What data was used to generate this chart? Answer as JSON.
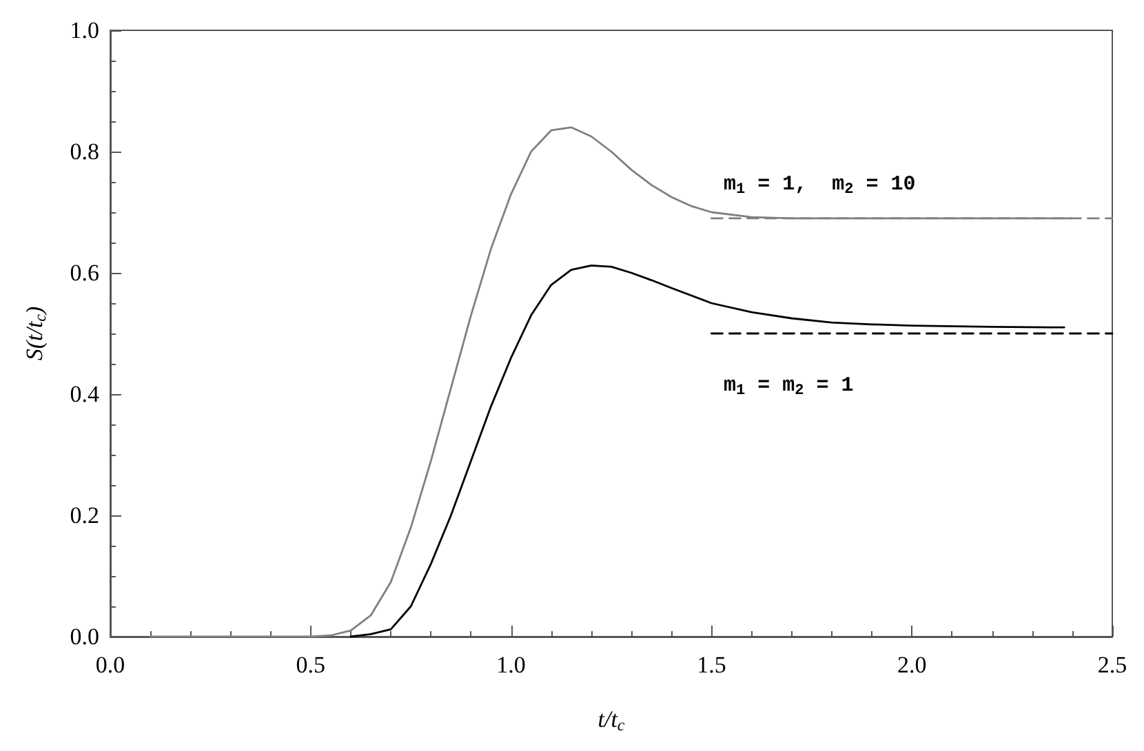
{
  "chart_data": {
    "type": "line",
    "xlabel": "t/t$_{c}$",
    "ylabel": "S(t/t$_{c}$)",
    "xlim": [
      0,
      2.5
    ],
    "xticks": [
      {
        "value": 0,
        "label": "0.0"
      },
      0.5,
      {
        "value": 1,
        "label": "1.0"
      },
      1.5,
      {
        "value": 2,
        "label": "2.0"
      },
      2.5
    ],
    "ylim": [
      0,
      1
    ],
    "yticks": [
      {
        "value": 0,
        "label": "0.0"
      },
      0.2,
      0.4,
      0.6,
      0.8,
      {
        "value": 1,
        "label": "1.0"
      }
    ],
    "grid": false,
    "marker": "none",
    "series": [
      {
        "color": "#808080",
        "line_style": "solid",
        "x": [
          0.1,
          0.3,
          0.5,
          0.55,
          0.6,
          0.65,
          0.7,
          0.75,
          0.8,
          0.85,
          0.9,
          0.95,
          1.0,
          1.05,
          1.1,
          1.15,
          1.2,
          1.25,
          1.3,
          1.35,
          1.4,
          1.45,
          1.5,
          1.6,
          1.7,
          1.8,
          2.0,
          2.2,
          2.4
        ],
        "values": [
          0,
          0,
          0,
          0.002,
          0.01,
          0.035,
          0.09,
          0.18,
          0.29,
          0.41,
          0.53,
          0.64,
          0.73,
          0.8,
          0.835,
          0.84,
          0.825,
          0.8,
          0.77,
          0.745,
          0.725,
          0.71,
          0.7,
          0.692,
          0.69,
          0.69,
          0.69,
          0.69,
          0.69
        ]
      },
      {
        "color": "#000000",
        "line_style": "solid",
        "x": [
          0.6,
          0.65,
          0.7,
          0.75,
          0.8,
          0.85,
          0.9,
          0.95,
          1.0,
          1.05,
          1.1,
          1.15,
          1.2,
          1.25,
          1.3,
          1.35,
          1.4,
          1.5,
          1.6,
          1.7,
          1.8,
          1.9,
          2.0,
          2.2,
          2.38
        ],
        "values": [
          0,
          0.004,
          0.012,
          0.05,
          0.12,
          0.2,
          0.29,
          0.38,
          0.46,
          0.53,
          0.58,
          0.605,
          0.612,
          0.61,
          0.6,
          0.588,
          0.575,
          0.55,
          0.535,
          0.525,
          0.518,
          0.515,
          0.513,
          0.511,
          0.51
        ]
      },
      {
        "color": "#808080",
        "line_style": "dashed",
        "x": [
          1.5,
          2.5
        ],
        "values": [
          0.69,
          0.69
        ]
      },
      {
        "color": "#000000",
        "line_style": "dashed",
        "x": [
          1.5,
          2.5
        ],
        "values": [
          0.5,
          0.5
        ]
      }
    ],
    "annotations": [
      "m$_{1}$ = 1,  m$_{2}$ = 10",
      "m$_{1}$ = m$_{2}$ = 1"
    ]
  }
}
